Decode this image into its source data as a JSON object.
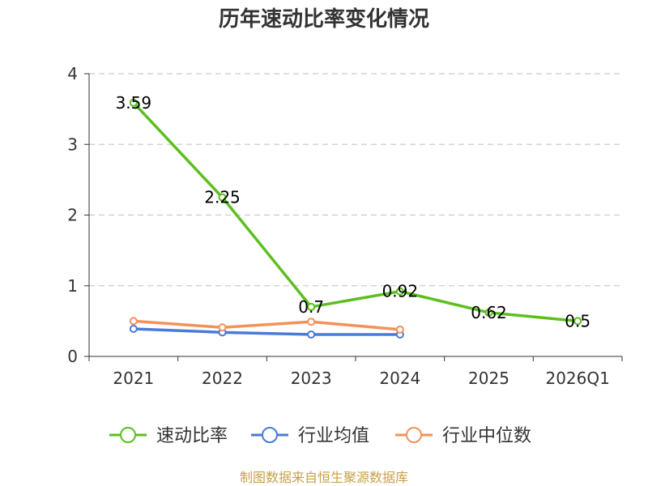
{
  "chart_data": {
    "type": "line",
    "title": "历年速动比率变化情况",
    "categories": [
      "2021",
      "2022",
      "2023",
      "2024",
      "2025",
      "2026Q1"
    ],
    "yticks": [
      "0",
      "1",
      "2",
      "3",
      "4"
    ],
    "ylim": [
      0,
      4
    ],
    "grid": true,
    "legend_position": "bottom",
    "series": [
      {
        "name": "速动比率",
        "color": "#5cbf1f",
        "values": [
          3.59,
          2.25,
          0.7,
          0.92,
          0.62,
          0.5
        ],
        "labels": [
          "3.59",
          "2.25",
          "0.7",
          "0.92",
          "0.62",
          "0.5"
        ]
      },
      {
        "name": "行业均值",
        "color": "#4a7bd8",
        "values": [
          0.39,
          0.34,
          0.31,
          0.31,
          null,
          null
        ]
      },
      {
        "name": "行业中位数",
        "color": "#f4915a",
        "values": [
          0.5,
          0.41,
          0.49,
          0.38,
          null,
          null
        ]
      }
    ]
  },
  "source": "制图数据来自恒生聚源数据库"
}
